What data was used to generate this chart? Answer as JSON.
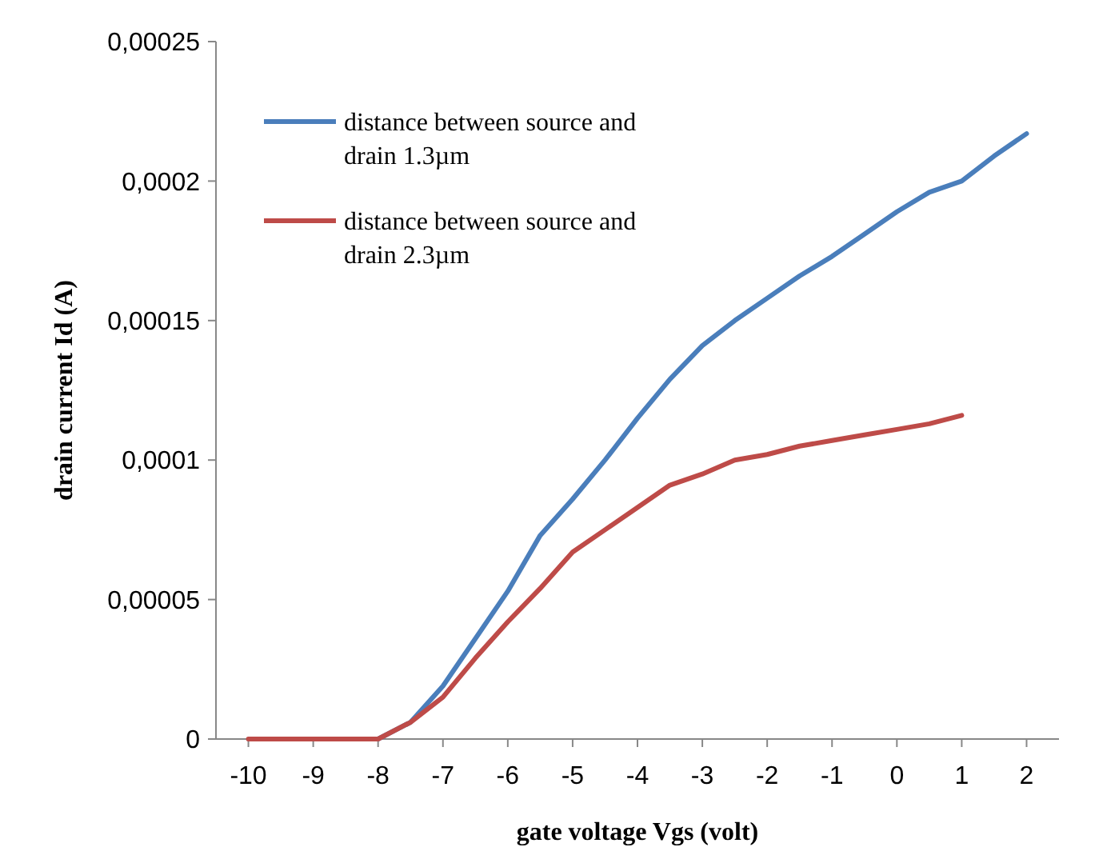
{
  "chart_data": {
    "type": "line",
    "xlabel": "gate voltage Vgs (volt)",
    "ylabel": "drain current Id  (A)",
    "x": [
      -10,
      -9.5,
      -9,
      -8.5,
      -8,
      -7.5,
      -7,
      -6.5,
      -6,
      -5.5,
      -5,
      -4.5,
      -4,
      -3.5,
      -3,
      -2.5,
      -2,
      -1.5,
      -1,
      -0.5,
      0,
      0.5,
      1
    ],
    "series": [
      {
        "name": "distance between source and drain 1.3µm",
        "color": "#4a7ebb",
        "x": [
          -8,
          -7.5,
          -7,
          -6.5,
          -6,
          -5.5,
          -5,
          -4.5,
          -4,
          -3.5,
          -3,
          -2.5,
          -2,
          -1.5,
          -1,
          -0.5,
          0,
          0.5,
          1,
          1.5,
          2
        ],
        "values": [
          0,
          6e-06,
          1.9e-05,
          3.6e-05,
          5.3e-05,
          7.3e-05,
          8.6e-05,
          0.0001,
          0.000115,
          0.000129,
          0.000141,
          0.00015,
          0.000158,
          0.000166,
          0.000173,
          0.000181,
          0.000189,
          0.000196,
          0.0002,
          0.000209,
          0.000217
        ]
      },
      {
        "name": "distance between source and drain 2.3µm",
        "color": "#be4b48",
        "values": [
          0,
          0,
          0,
          0,
          0,
          6e-06,
          1.5e-05,
          2.9e-05,
          4.2e-05,
          5.4e-05,
          6.7e-05,
          7.5e-05,
          8.3e-05,
          9.1e-05,
          9.5e-05,
          0.0001,
          0.000102,
          0.000105,
          0.000107,
          0.000109,
          0.000111,
          0.000113,
          0.000116
        ]
      }
    ],
    "xlim": [
      -10.5,
      2.5
    ],
    "xticks": [
      -10,
      -9,
      -8,
      -7,
      -6,
      -5,
      -4,
      -3,
      -2,
      -1,
      0,
      1,
      2
    ],
    "ylim": [
      0,
      0.00025
    ],
    "yticks": [
      {
        "value": 0,
        "label": "0"
      },
      {
        "value": 5e-05,
        "label": "0,00005"
      },
      {
        "value": 0.0001,
        "label": "0,0001"
      },
      {
        "value": 0.00015,
        "label": "0,00015"
      },
      {
        "value": 0.0002,
        "label": "0,0002"
      },
      {
        "value": 0.00025,
        "label": "0,00025"
      }
    ],
    "grid": false,
    "legend": "top left",
    "marker": "none",
    "line_style": "solid"
  }
}
